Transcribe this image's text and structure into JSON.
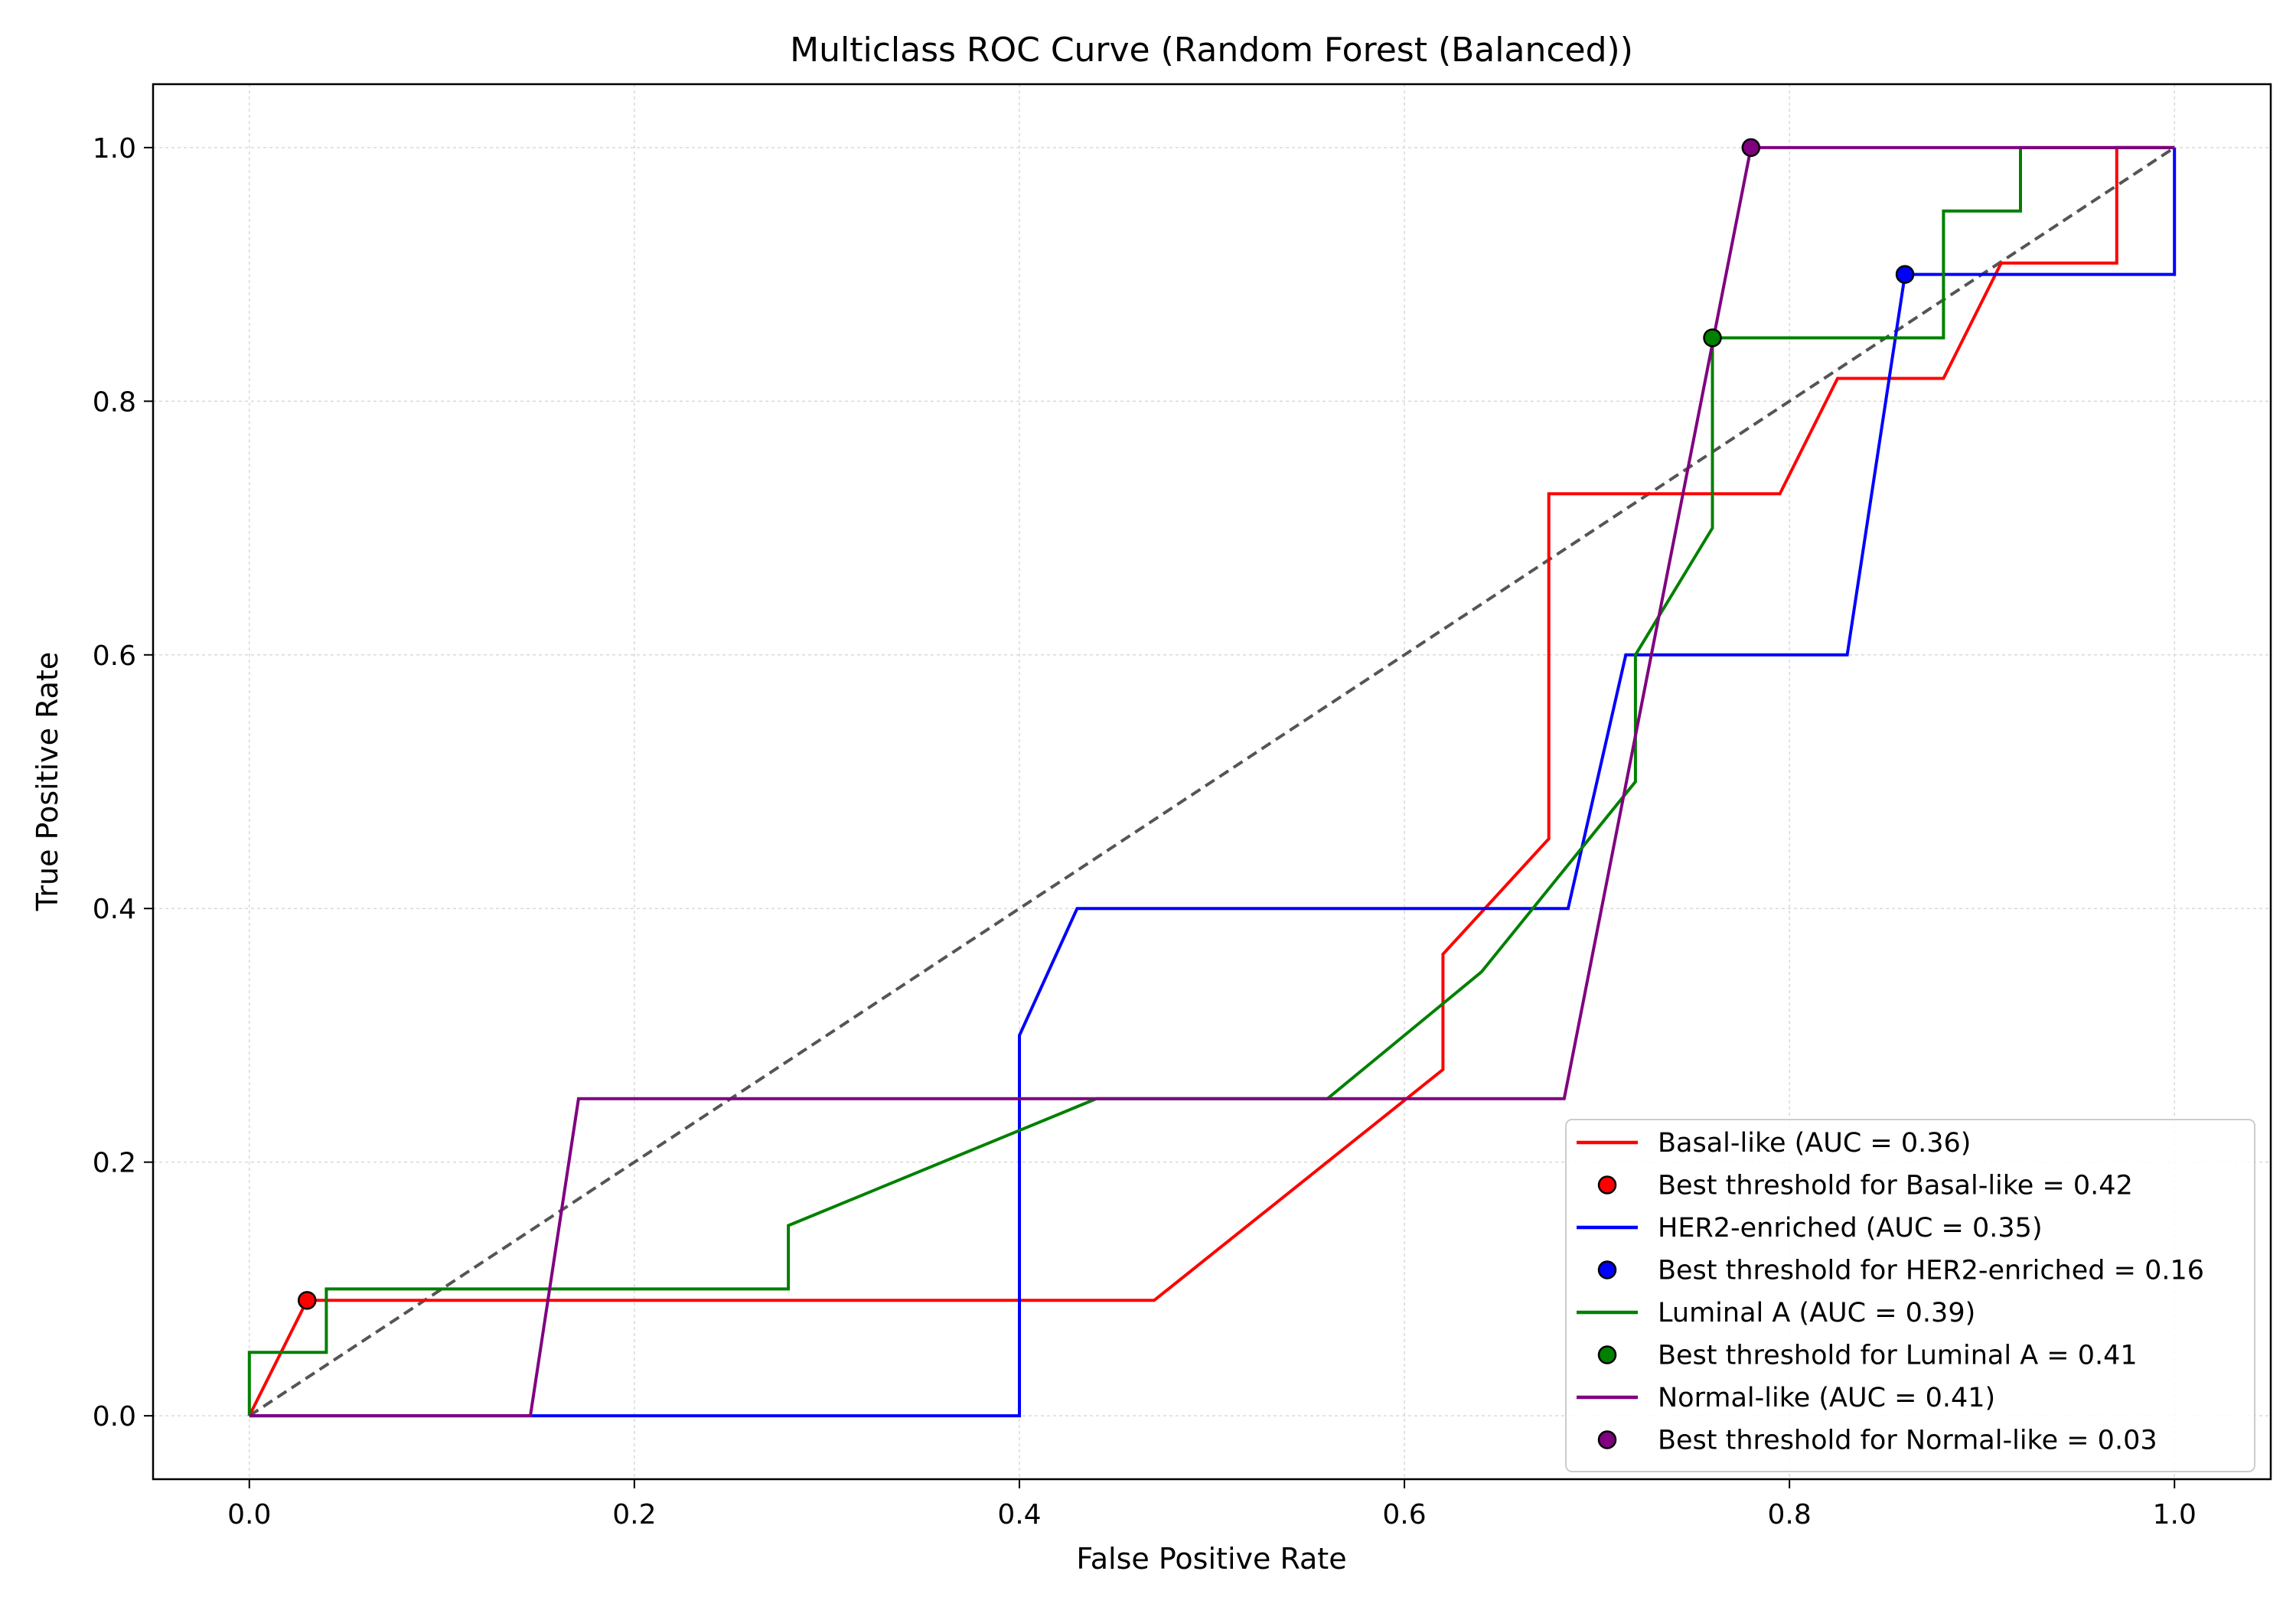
{
  "chart_data": {
    "type": "line",
    "title": "Multiclass ROC Curve (Random Forest (Balanced))",
    "xlabel": "False Positive Rate",
    "ylabel": "True Positive Rate",
    "xlim": [
      -0.05,
      1.05
    ],
    "ylim": [
      -0.05,
      1.05
    ],
    "xticks": [
      "0.0",
      "0.2",
      "0.4",
      "0.6",
      "0.8",
      "1.0"
    ],
    "yticks": [
      "0.0",
      "0.2",
      "0.4",
      "0.6",
      "0.8",
      "1.0"
    ],
    "grid": true,
    "legend_position": "lower-right",
    "diagonal": {
      "x": [
        0,
        1
      ],
      "y": [
        0,
        1
      ],
      "color": "#555555",
      "style": "dashed"
    },
    "series": [
      {
        "name": "Basal-like (AUC = 0.36)",
        "color": "#ff0000",
        "x": [
          0,
          0.03,
          0.03,
          0.47,
          0.62,
          0.62,
          0.675,
          0.675,
          0.795,
          0.825,
          0.88,
          0.91,
          0.97,
          0.97,
          1.0
        ],
        "y": [
          0,
          0.091,
          0.091,
          0.091,
          0.273,
          0.364,
          0.455,
          0.727,
          0.727,
          0.818,
          0.818,
          0.909,
          0.909,
          1.0,
          1.0
        ]
      },
      {
        "name": "HER2-enriched (AUC = 0.35)",
        "color": "#0000ff",
        "x": [
          0,
          0.4,
          0.4,
          0.43,
          0.685,
          0.715,
          0.83,
          0.86,
          1.0,
          1.0
        ],
        "y": [
          0,
          0,
          0.3,
          0.4,
          0.4,
          0.6,
          0.6,
          0.9,
          0.9,
          1.0
        ]
      },
      {
        "name": "Luminal A (AUC = 0.39)",
        "color": "#008000",
        "x": [
          0,
          0,
          0.04,
          0.04,
          0.28,
          0.28,
          0.44,
          0.56,
          0.64,
          0.72,
          0.72,
          0.76,
          0.76,
          0.88,
          0.88,
          0.92,
          0.92,
          1.0
        ],
        "y": [
          0,
          0.05,
          0.05,
          0.1,
          0.1,
          0.15,
          0.25,
          0.25,
          0.35,
          0.5,
          0.6,
          0.7,
          0.85,
          0.85,
          0.95,
          0.95,
          1.0,
          1.0
        ]
      },
      {
        "name": "Normal-like (AUC = 0.41)",
        "color": "#800080",
        "x": [
          0,
          0.146,
          0.171,
          0.683,
          0.78,
          1.0
        ],
        "y": [
          0,
          0,
          0.25,
          0.25,
          1.0,
          1.0
        ]
      }
    ],
    "best_points": [
      {
        "label": "Best threshold for Basal-like = 0.42",
        "color": "#ff0000",
        "x": 0.03,
        "y": 0.091
      },
      {
        "label": "Best threshold for HER2-enriched = 0.16",
        "color": "#0000ff",
        "x": 0.86,
        "y": 0.9
      },
      {
        "label": "Best threshold for Luminal A = 0.41",
        "color": "#008000",
        "x": 0.76,
        "y": 0.85
      },
      {
        "label": "Best threshold for Normal-like = 0.03",
        "color": "#800080",
        "x": 0.78,
        "y": 1.0
      }
    ]
  }
}
